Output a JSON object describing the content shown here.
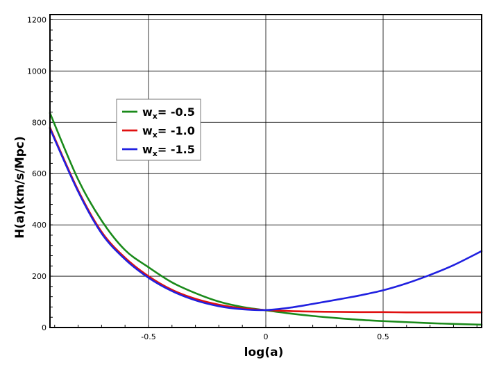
{
  "chart_data": {
    "type": "line",
    "title": "",
    "xlabel": "log(a)",
    "ylabel": "H(a)(km/s/Mpc)",
    "xlim": [
      -0.92,
      0.92
    ],
    "ylim": [
      0,
      1220
    ],
    "x_ticks": [
      -0.5,
      0,
      0.5
    ],
    "x_tick_labels": [
      "-0.5",
      "0",
      "0.5"
    ],
    "y_ticks": [
      0,
      200,
      400,
      600,
      800,
      1000,
      1200
    ],
    "y_tick_labels": [
      "0",
      "200",
      "400",
      "600",
      "800",
      "1000",
      "1200"
    ],
    "grid": true,
    "legend_position": "upper-left",
    "series": [
      {
        "name": "wx= -0.5",
        "label_main": "w",
        "label_sub": "x",
        "label_rest": "= -0.5",
        "color": "#1a8a1a",
        "x": [
          -0.92,
          -0.8,
          -0.7,
          -0.6,
          -0.5,
          -0.4,
          -0.3,
          -0.2,
          -0.1,
          0,
          0.1,
          0.2,
          0.3,
          0.4,
          0.5,
          0.6,
          0.7,
          0.8,
          0.92
        ],
        "y": [
          836,
          577,
          417,
          302,
          235,
          176,
          134,
          101,
          80,
          67,
          55,
          45,
          37,
          30,
          25,
          21,
          17,
          14,
          11
        ]
      },
      {
        "name": "wx= -1.0",
        "label_main": "w",
        "label_sub": "x",
        "label_rest": "= -1.0",
        "color": "#e01010",
        "x": [
          -0.92,
          -0.8,
          -0.7,
          -0.6,
          -0.5,
          -0.4,
          -0.3,
          -0.2,
          -0.1,
          0,
          0.1,
          0.2,
          0.3,
          0.4,
          0.5,
          0.6,
          0.7,
          0.8,
          0.92
        ],
        "y": [
          780,
          535,
          373,
          272,
          200,
          147,
          112,
          89,
          75,
          68,
          64,
          62,
          61,
          60,
          60,
          59,
          59,
          59,
          59
        ]
      },
      {
        "name": "wx= -1.5",
        "label_main": "w",
        "label_sub": "x",
        "label_rest": "= -1.5",
        "color": "#2020e0",
        "x": [
          -0.92,
          -0.8,
          -0.7,
          -0.6,
          -0.5,
          -0.4,
          -0.3,
          -0.2,
          -0.1,
          0,
          0.1,
          0.2,
          0.3,
          0.4,
          0.5,
          0.6,
          0.7,
          0.8,
          0.92
        ],
        "y": [
          775,
          530,
          367,
          266,
          194,
          142,
          106,
          83,
          71,
          68,
          77,
          92,
          108,
          125,
          145,
          172,
          205,
          243,
          298
        ]
      }
    ]
  }
}
